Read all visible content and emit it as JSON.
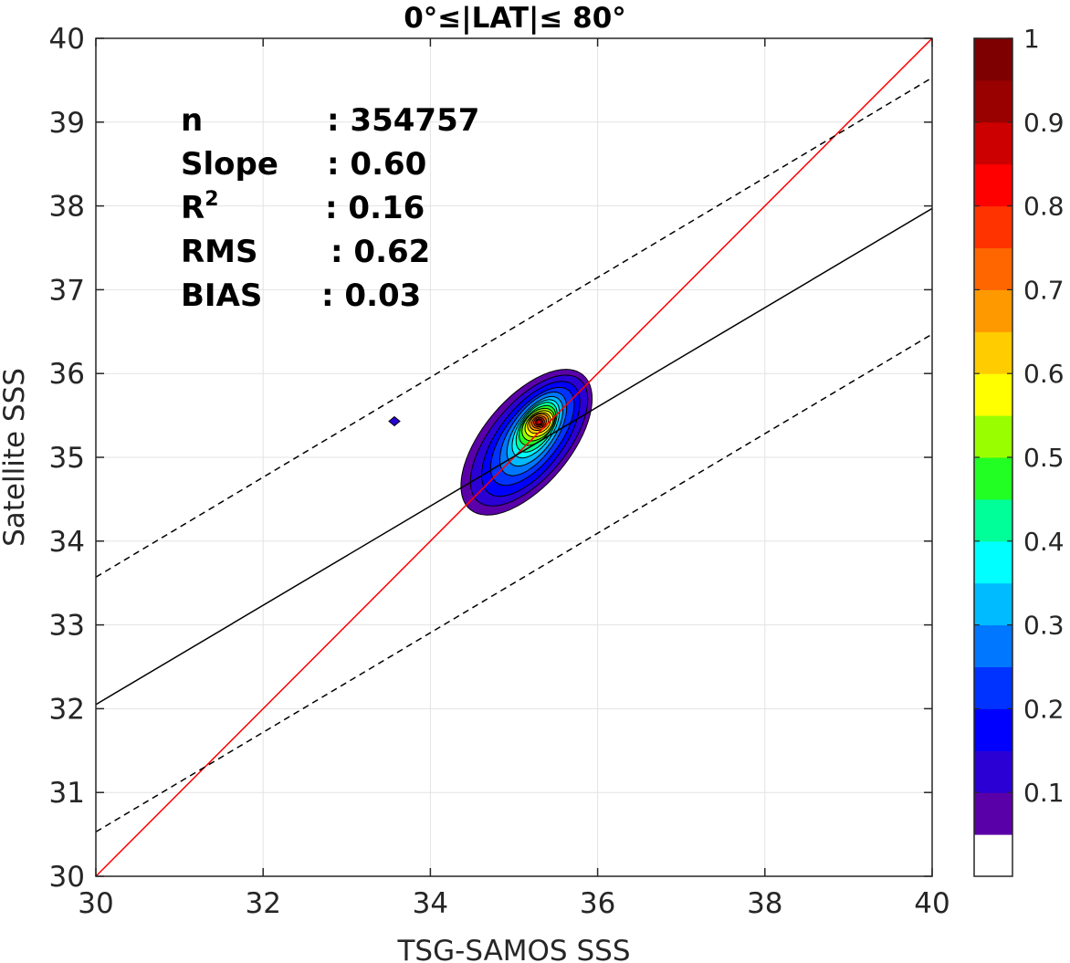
{
  "chart_data": {
    "type": "contour",
    "title": "0°≤|LAT|≤ 80°",
    "xlabel": "TSG-SAMOS SSS",
    "ylabel": "Satellite SSS",
    "xlim": [
      30,
      40
    ],
    "ylim": [
      30,
      40
    ],
    "xticks": [
      "30",
      "32",
      "34",
      "36",
      "38",
      "40"
    ],
    "yticks": [
      "30",
      "31",
      "32",
      "33",
      "34",
      "35",
      "36",
      "37",
      "38",
      "39",
      "40"
    ],
    "grid": true,
    "stats": [
      {
        "label": "n",
        "value": ": 354757"
      },
      {
        "label": "Slope",
        "value": ": 0.60"
      },
      {
        "label": "R",
        "sup": "2",
        "value": ": 0.16"
      },
      {
        "label": "RMS",
        "value": ": 0.62"
      },
      {
        "label": "BIAS",
        "value": ": 0.03"
      }
    ],
    "lines": [
      {
        "role": "one-to-one",
        "color": "#ff0000",
        "dashed": false,
        "x": [
          30,
          40
        ],
        "y": [
          30,
          40
        ]
      },
      {
        "role": "regression",
        "color": "#000000",
        "dashed": false,
        "x": [
          30,
          40
        ],
        "y": [
          32.05,
          37.97
        ]
      },
      {
        "role": "upper-bound",
        "color": "#000000",
        "dashed": true,
        "x": [
          30,
          40
        ],
        "y": [
          33.57,
          39.53
        ]
      },
      {
        "role": "lower-bound",
        "color": "#000000",
        "dashed": true,
        "x": [
          30,
          40
        ],
        "y": [
          30.53,
          36.47
        ]
      }
    ],
    "density_peak": {
      "x": 35.3,
      "y": 35.42
    },
    "density_contours": [
      {
        "level": 0.05,
        "color": "#5a00a8",
        "cx": 35.15,
        "cy": 35.18,
        "rx": 1.05,
        "ry": 0.52,
        "angle": 50
      },
      {
        "level": 0.1,
        "color": "#2a00d5",
        "cx": 35.18,
        "cy": 35.2,
        "rx": 0.95,
        "ry": 0.45,
        "angle": 50
      },
      {
        "level": 0.15,
        "color": "#0000ff",
        "cx": 35.2,
        "cy": 35.22,
        "rx": 0.82,
        "ry": 0.38,
        "angle": 52
      },
      {
        "level": 0.2,
        "color": "#0033ff",
        "cx": 35.22,
        "cy": 35.25,
        "rx": 0.7,
        "ry": 0.32,
        "angle": 52
      },
      {
        "level": 0.25,
        "color": "#0077ff",
        "cx": 35.23,
        "cy": 35.28,
        "rx": 0.58,
        "ry": 0.27,
        "angle": 55
      },
      {
        "level": 0.3,
        "color": "#00bbff",
        "cx": 35.25,
        "cy": 35.31,
        "rx": 0.48,
        "ry": 0.23,
        "angle": 55
      },
      {
        "level": 0.35,
        "color": "#00ffff",
        "cx": 35.26,
        "cy": 35.34,
        "rx": 0.4,
        "ry": 0.2,
        "angle": 55
      },
      {
        "level": 0.4,
        "color": "#00ff99",
        "cx": 35.27,
        "cy": 35.36,
        "rx": 0.34,
        "ry": 0.18,
        "angle": 55
      },
      {
        "level": 0.5,
        "color": "#22ff22",
        "cx": 35.28,
        "cy": 35.38,
        "rx": 0.28,
        "ry": 0.16,
        "angle": 50
      },
      {
        "level": 0.55,
        "color": "#99ff00",
        "cx": 35.29,
        "cy": 35.39,
        "rx": 0.23,
        "ry": 0.15,
        "angle": 45
      },
      {
        "level": 0.6,
        "color": "#ffff00",
        "cx": 35.3,
        "cy": 35.4,
        "rx": 0.19,
        "ry": 0.13,
        "angle": 40
      },
      {
        "level": 0.65,
        "color": "#ffcc00",
        "cx": 35.3,
        "cy": 35.41,
        "rx": 0.15,
        "ry": 0.11,
        "angle": 35
      },
      {
        "level": 0.7,
        "color": "#ff9900",
        "cx": 35.3,
        "cy": 35.42,
        "rx": 0.12,
        "ry": 0.09,
        "angle": 30
      },
      {
        "level": 0.75,
        "color": "#ff6600",
        "cx": 35.3,
        "cy": 35.42,
        "rx": 0.09,
        "ry": 0.07,
        "angle": 25
      },
      {
        "level": 0.8,
        "color": "#ff3300",
        "cx": 35.3,
        "cy": 35.42,
        "rx": 0.065,
        "ry": 0.055,
        "angle": 20
      },
      {
        "level": 0.85,
        "color": "#ff0000",
        "cx": 35.3,
        "cy": 35.42,
        "rx": 0.045,
        "ry": 0.04,
        "angle": 20
      },
      {
        "level": 0.9,
        "color": "#cc0000",
        "cx": 35.3,
        "cy": 35.42,
        "rx": 0.03,
        "ry": 0.028,
        "angle": 20
      }
    ],
    "outlier": {
      "x": 33.57,
      "y": 35.43,
      "color": "#2a00d5"
    },
    "colorbar": {
      "range": [
        0,
        1
      ],
      "ticks": [
        "0.1",
        "0.2",
        "0.3",
        "0.4",
        "0.5",
        "0.6",
        "0.7",
        "0.8",
        "0.9",
        "1"
      ],
      "colors": [
        "#ffffff",
        "#5a00a8",
        "#2a00d5",
        "#0000ff",
        "#0033ff",
        "#0077ff",
        "#00bbff",
        "#00ffff",
        "#00ff99",
        "#22ff22",
        "#99ff00",
        "#ffff00",
        "#ffcc00",
        "#ff9900",
        "#ff6600",
        "#ff3300",
        "#ff0000",
        "#cc0000",
        "#990000",
        "#7f0000"
      ]
    }
  }
}
